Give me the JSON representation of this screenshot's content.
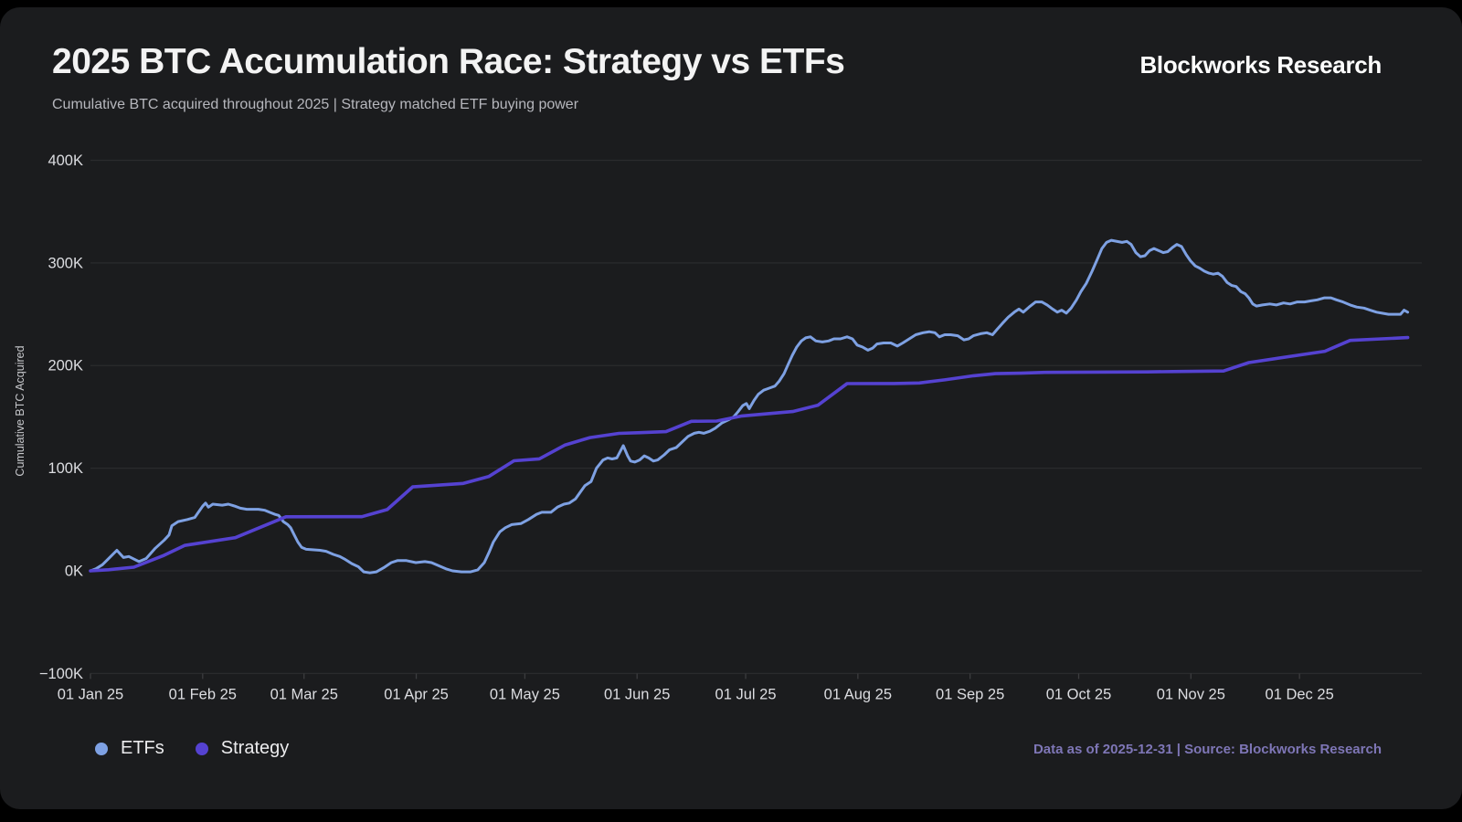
{
  "header": {
    "title": "2025 BTC Accumulation Race: Strategy vs ETFs",
    "subtitle": "Cumulative BTC acquired throughout 2025 | Strategy matched ETF buying power",
    "brand": "Blockworks Research"
  },
  "legend": {
    "items": [
      {
        "label": "ETFs",
        "color": "#7ea1e3"
      },
      {
        "label": "Strategy",
        "color": "#5542d1"
      }
    ]
  },
  "footer": {
    "source_note": "Data as of 2025-12-31 | Source: Blockworks Research"
  },
  "axes": {
    "y_title": "Cumulative BTC Acquired",
    "y_ticks": [
      {
        "label": "400K",
        "value": 400
      },
      {
        "label": "300K",
        "value": 300
      },
      {
        "label": "200K",
        "value": 200
      },
      {
        "label": "100K",
        "value": 100
      },
      {
        "label": "0K",
        "value": 0
      },
      {
        "label": "−100K",
        "value": -100
      }
    ],
    "x_ticks": [
      {
        "label": "01 Jan 25",
        "doy": 1
      },
      {
        "label": "01 Feb 25",
        "doy": 32
      },
      {
        "label": "01 Mar 25",
        "doy": 60
      },
      {
        "label": "01 Apr 25",
        "doy": 91
      },
      {
        "label": "01 May 25",
        "doy": 121
      },
      {
        "label": "01 Jun 25",
        "doy": 152
      },
      {
        "label": "01 Jul 25",
        "doy": 182
      },
      {
        "label": "01 Aug 25",
        "doy": 213
      },
      {
        "label": "01 Sep 25",
        "doy": 244
      },
      {
        "label": "01 Oct 25",
        "doy": 274
      },
      {
        "label": "01 Nov 25",
        "doy": 305
      },
      {
        "label": "01 Dec 25",
        "doy": 335
      }
    ]
  },
  "chart_data": {
    "type": "line",
    "title": "2025 BTC Accumulation Race: Strategy vs ETFs",
    "xlabel": "",
    "ylabel": "Cumulative BTC Acquired",
    "x_unit": "day of year 2025",
    "y_unit": "thousand BTC",
    "ylim": [
      -100,
      400
    ],
    "xlim": [
      1,
      365
    ],
    "grid": "horizontal",
    "legend_position": "bottom-left",
    "colors": {
      "background": "#1b1c1e",
      "gridline": "#2a2b2d",
      "tick_text": "#dcdde1"
    },
    "series": [
      {
        "name": "ETFs",
        "color": "#7ea1e3",
        "stroke_width": 3,
        "points": [
          [
            1,
            0
          ],
          [
            2.5,
            2
          ],
          [
            4.3,
            6
          ],
          [
            6.3,
            13
          ],
          [
            8.3,
            20
          ],
          [
            10.1,
            13
          ],
          [
            11.6,
            14
          ],
          [
            14.4,
            9
          ],
          [
            16.4,
            12
          ],
          [
            18.9,
            22
          ],
          [
            21.4,
            30
          ],
          [
            22.7,
            35
          ],
          [
            23.5,
            44
          ],
          [
            25.2,
            48
          ],
          [
            27.8,
            50
          ],
          [
            29.8,
            52
          ],
          [
            30.8,
            57
          ],
          [
            32,
            63
          ],
          [
            32.8,
            66
          ],
          [
            33.6,
            62
          ],
          [
            34.8,
            65
          ],
          [
            37.4,
            64
          ],
          [
            39.1,
            65
          ],
          [
            40.9,
            63
          ],
          [
            42.4,
            61
          ],
          [
            44.2,
            60
          ],
          [
            47.4,
            60
          ],
          [
            49.2,
            59
          ],
          [
            50.5,
            57
          ],
          [
            52,
            55
          ],
          [
            53,
            54
          ],
          [
            54.3,
            48
          ],
          [
            55.5,
            45
          ],
          [
            56.3,
            42
          ],
          [
            57.3,
            35
          ],
          [
            58.3,
            28
          ],
          [
            59.3,
            23
          ],
          [
            60.6,
            21
          ],
          [
            64.4,
            20
          ],
          [
            66.1,
            19
          ],
          [
            68.1,
            16
          ],
          [
            69.9,
            14
          ],
          [
            71.4,
            11
          ],
          [
            73.2,
            7
          ],
          [
            75,
            4
          ],
          [
            76.5,
            -1
          ],
          [
            78.2,
            -2
          ],
          [
            80,
            -1
          ],
          [
            82,
            3
          ],
          [
            84.1,
            8
          ],
          [
            85.8,
            10
          ],
          [
            88.3,
            10
          ],
          [
            90.9,
            8
          ],
          [
            93.4,
            9
          ],
          [
            95.2,
            8
          ],
          [
            97.2,
            5
          ],
          [
            99.2,
            2
          ],
          [
            101,
            0
          ],
          [
            103.5,
            -1
          ],
          [
            106,
            -1
          ],
          [
            108,
            1
          ],
          [
            109.8,
            8
          ],
          [
            111.1,
            18
          ],
          [
            112.3,
            28
          ],
          [
            114.1,
            38
          ],
          [
            115.6,
            42
          ],
          [
            117.4,
            45
          ],
          [
            119.9,
            46
          ],
          [
            122,
            50
          ],
          [
            124.2,
            55
          ],
          [
            125.7,
            57
          ],
          [
            128.2,
            57
          ],
          [
            130,
            62
          ],
          [
            131.8,
            65
          ],
          [
            133.3,
            66
          ],
          [
            135,
            70
          ],
          [
            137.6,
            83
          ],
          [
            139.3,
            87
          ],
          [
            140.8,
            100
          ],
          [
            142.6,
            108
          ],
          [
            143.9,
            110
          ],
          [
            145.1,
            109
          ],
          [
            146.4,
            110
          ],
          [
            148.2,
            122
          ],
          [
            149.4,
            112
          ],
          [
            150.2,
            107
          ],
          [
            151.4,
            106
          ],
          [
            152.7,
            108
          ],
          [
            154,
            112
          ],
          [
            155.2,
            110
          ],
          [
            156.5,
            107
          ],
          [
            157.7,
            108
          ],
          [
            159.5,
            113
          ],
          [
            161,
            118
          ],
          [
            162.8,
            120
          ],
          [
            164.3,
            125
          ],
          [
            166.1,
            131
          ],
          [
            167.8,
            134
          ],
          [
            169.1,
            135
          ],
          [
            170.4,
            134
          ],
          [
            172.1,
            136
          ],
          [
            173.6,
            139
          ],
          [
            175.4,
            144
          ],
          [
            177.2,
            147
          ],
          [
            178.7,
            150
          ],
          [
            179.9,
            155
          ],
          [
            181.2,
            161
          ],
          [
            182.2,
            163
          ],
          [
            183,
            158
          ],
          [
            184.3,
            166
          ],
          [
            185.5,
            172
          ],
          [
            187,
            176
          ],
          [
            188.5,
            178
          ],
          [
            190.1,
            180
          ],
          [
            191.3,
            185
          ],
          [
            192.6,
            192
          ],
          [
            193.6,
            200
          ],
          [
            194.9,
            210
          ],
          [
            196.1,
            218
          ],
          [
            197.4,
            224
          ],
          [
            198.6,
            227
          ],
          [
            199.9,
            228
          ],
          [
            201.4,
            224
          ],
          [
            203.2,
            223
          ],
          [
            204.9,
            224
          ],
          [
            206.4,
            226
          ],
          [
            208.2,
            226
          ],
          [
            210,
            228
          ],
          [
            211.5,
            226
          ],
          [
            212.8,
            220
          ],
          [
            214.3,
            218
          ],
          [
            215.8,
            215
          ],
          [
            217.1,
            217
          ],
          [
            218.3,
            221
          ],
          [
            220.1,
            222
          ],
          [
            222.1,
            222
          ],
          [
            223.9,
            219
          ],
          [
            225.4,
            222
          ],
          [
            227.2,
            226
          ],
          [
            229,
            230
          ],
          [
            231,
            232
          ],
          [
            232.7,
            233
          ],
          [
            234.3,
            232
          ],
          [
            235.5,
            228
          ],
          [
            237,
            230
          ],
          [
            238.6,
            230
          ],
          [
            240.6,
            229
          ],
          [
            242.3,
            225
          ],
          [
            243.6,
            226
          ],
          [
            244.9,
            229
          ],
          [
            246.9,
            231
          ],
          [
            248.6,
            232
          ],
          [
            250.2,
            230
          ],
          [
            251.4,
            235
          ],
          [
            252.9,
            241
          ],
          [
            254.5,
            247
          ],
          [
            256.2,
            252
          ],
          [
            257.5,
            255
          ],
          [
            258.7,
            252
          ],
          [
            260.3,
            257
          ],
          [
            262.1,
            262
          ],
          [
            263.8,
            262
          ],
          [
            265.3,
            259
          ],
          [
            266.8,
            255
          ],
          [
            268.1,
            252
          ],
          [
            269.3,
            254
          ],
          [
            270.6,
            251
          ],
          [
            271.9,
            256
          ],
          [
            273.4,
            264
          ],
          [
            274.6,
            272
          ],
          [
            276.1,
            280
          ],
          [
            277.7,
            292
          ],
          [
            279.2,
            304
          ],
          [
            280.4,
            314
          ],
          [
            281.7,
            320
          ],
          [
            283,
            322
          ],
          [
            286,
            320
          ],
          [
            287.3,
            321
          ],
          [
            288.5,
            318
          ],
          [
            289.8,
            310
          ],
          [
            291.1,
            306
          ],
          [
            292.3,
            307
          ],
          [
            293.6,
            312
          ],
          [
            294.8,
            314
          ],
          [
            296.1,
            312
          ],
          [
            297.4,
            310
          ],
          [
            298.6,
            311
          ],
          [
            299.9,
            315
          ],
          [
            301.1,
            318
          ],
          [
            302.4,
            316
          ],
          [
            303.7,
            308
          ],
          [
            304.9,
            302
          ],
          [
            306.2,
            297
          ],
          [
            307.4,
            295
          ],
          [
            308.7,
            292
          ],
          [
            310,
            290
          ],
          [
            311.2,
            289
          ],
          [
            312.5,
            290
          ],
          [
            313.7,
            287
          ],
          [
            315,
            281
          ],
          [
            316.3,
            278
          ],
          [
            317.5,
            277
          ],
          [
            318.8,
            272
          ],
          [
            320,
            270
          ],
          [
            321,
            266
          ],
          [
            322.1,
            260
          ],
          [
            323.1,
            258
          ],
          [
            324.8,
            259
          ],
          [
            326.8,
            260
          ],
          [
            328.6,
            259
          ],
          [
            330.6,
            261
          ],
          [
            332.4,
            260
          ],
          [
            334.4,
            262
          ],
          [
            336.4,
            262
          ],
          [
            338.2,
            263
          ],
          [
            339.9,
            264
          ],
          [
            341.9,
            266
          ],
          [
            343.7,
            266
          ],
          [
            345.2,
            264
          ],
          [
            347,
            262
          ],
          [
            349,
            259
          ],
          [
            350.8,
            257
          ],
          [
            352.8,
            256
          ],
          [
            354.5,
            254
          ],
          [
            356.3,
            252
          ],
          [
            357.8,
            251
          ],
          [
            359.6,
            250
          ],
          [
            361.4,
            250
          ],
          [
            362.9,
            250
          ],
          [
            363.9,
            254
          ],
          [
            364.9,
            252
          ]
        ]
      },
      {
        "name": "Strategy",
        "color": "#5542d1",
        "stroke_width": 3.6,
        "points": [
          [
            1,
            0
          ],
          [
            6,
            1.1
          ],
          [
            13,
            3.6
          ],
          [
            21,
            14.6
          ],
          [
            27,
            24.7
          ],
          [
            41,
            32.3
          ],
          [
            55,
            52.7
          ],
          [
            76,
            52.8
          ],
          [
            83,
            59.7
          ],
          [
            90,
            81.8
          ],
          [
            104,
            85.2
          ],
          [
            111,
            91.8
          ],
          [
            118,
            107.2
          ],
          [
            125,
            109.1
          ],
          [
            132,
            122.4
          ],
          [
            139,
            129.8
          ],
          [
            147,
            133.9
          ],
          [
            153,
            134.6
          ],
          [
            160,
            135.6
          ],
          [
            167,
            145.7
          ],
          [
            174,
            145.9
          ],
          [
            181,
            150.9
          ],
          [
            195,
            155.2
          ],
          [
            202,
            161.4
          ],
          [
            210,
            182.4
          ],
          [
            223,
            182.5
          ],
          [
            230,
            183
          ],
          [
            237,
            186.1
          ],
          [
            245,
            190.1
          ],
          [
            251,
            192.1
          ],
          [
            258,
            192.6
          ],
          [
            265,
            193.4
          ],
          [
            279,
            193.6
          ],
          [
            293,
            193.8
          ],
          [
            300,
            194.2
          ],
          [
            314,
            194.7
          ],
          [
            321,
            202.9
          ],
          [
            342,
            213.9
          ],
          [
            349,
            224.5
          ],
          [
            364.9,
            227.3
          ]
        ]
      }
    ]
  }
}
